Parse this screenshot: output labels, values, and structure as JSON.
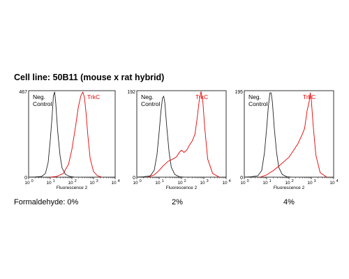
{
  "heading": "Cell line: 50B11 (mouse x rat hybrid)",
  "chart_data": [
    {
      "type": "line",
      "panel_caption": "Formaldehyde: 0%",
      "ymax_label": "467",
      "ymin_label": "0",
      "xlabel": "Fluorescence 2",
      "xscale": "log",
      "xlim": [
        1,
        10000
      ],
      "x_tick_labels": [
        "10",
        "10",
        "10",
        "10",
        "10"
      ],
      "x_tick_exponents": [
        "0",
        "1",
        "2",
        "3",
        "4"
      ],
      "series": [
        {
          "name": "Neg. Control",
          "color": "#222222",
          "x": [
            1,
            2,
            4,
            6,
            8,
            10,
            12,
            14,
            16,
            18,
            22,
            28,
            35,
            50,
            80,
            130
          ],
          "y": [
            0,
            1,
            4,
            20,
            80,
            200,
            320,
            440,
            460,
            400,
            250,
            120,
            50,
            15,
            4,
            0
          ]
        },
        {
          "name": "TrkC",
          "color": "#e60000",
          "x": [
            10,
            20,
            40,
            70,
            100,
            150,
            200,
            260,
            320,
            380,
            450,
            550,
            700,
            1000,
            1500,
            2500
          ],
          "y": [
            0,
            4,
            20,
            70,
            150,
            280,
            380,
            440,
            460,
            430,
            350,
            220,
            100,
            30,
            8,
            0
          ]
        }
      ]
    },
    {
      "type": "line",
      "panel_caption": "2%",
      "ymax_label": "192",
      "ymin_label": "0",
      "xlabel": "Fluorescence 2",
      "xscale": "log",
      "xlim": [
        1,
        10000
      ],
      "x_tick_labels": [
        "10",
        "10",
        "10",
        "10",
        "10"
      ],
      "x_tick_exponents": [
        "0",
        "1",
        "2",
        "3",
        "4"
      ],
      "series": [
        {
          "name": "Neg. Control",
          "color": "#222222",
          "x": [
            1,
            2,
            4,
            6,
            8,
            10,
            12,
            14,
            16,
            18,
            22,
            28,
            35,
            50,
            80,
            130
          ],
          "y": [
            0,
            1,
            3,
            15,
            50,
            100,
            145,
            175,
            180,
            165,
            110,
            55,
            22,
            6,
            1,
            0
          ]
        },
        {
          "name": "TrkC",
          "color": "#e60000",
          "x": [
            3,
            6,
            10,
            15,
            25,
            40,
            60,
            80,
            100,
            130,
            170,
            220,
            300,
            400,
            500,
            620,
            750,
            900,
            1100,
            1500,
            2500,
            5000
          ],
          "y": [
            0,
            5,
            15,
            25,
            35,
            40,
            45,
            55,
            60,
            55,
            60,
            70,
            80,
            95,
            130,
            170,
            190,
            170,
            110,
            40,
            8,
            0
          ]
        }
      ]
    },
    {
      "type": "line",
      "panel_caption": "4%",
      "ymax_label": "195",
      "ymin_label": "0",
      "xlabel": "Fluorescence 2",
      "xscale": "log",
      "xlim": [
        1,
        10000
      ],
      "x_tick_labels": [
        "10",
        "10",
        "10",
        "10",
        "10"
      ],
      "x_tick_exponents": [
        "0",
        "1",
        "2",
        "3",
        "4"
      ],
      "series": [
        {
          "name": "Neg. Control",
          "color": "#222222",
          "x": [
            1,
            2,
            4,
            6,
            8,
            10,
            12,
            14,
            16,
            18,
            22,
            28,
            35,
            50,
            80,
            130
          ],
          "y": [
            0,
            1,
            3,
            15,
            55,
            110,
            160,
            190,
            190,
            170,
            110,
            55,
            22,
            6,
            1,
            0
          ]
        },
        {
          "name": "TrkC",
          "color": "#e60000",
          "x": [
            5,
            10,
            20,
            35,
            60,
            100,
            160,
            250,
            380,
            500,
            650,
            800,
            900,
            1000,
            1200,
            1600,
            2500,
            5000
          ],
          "y": [
            0,
            5,
            15,
            25,
            35,
            45,
            60,
            75,
            95,
            110,
            150,
            170,
            190,
            175,
            120,
            50,
            10,
            0
          ]
        }
      ]
    }
  ]
}
